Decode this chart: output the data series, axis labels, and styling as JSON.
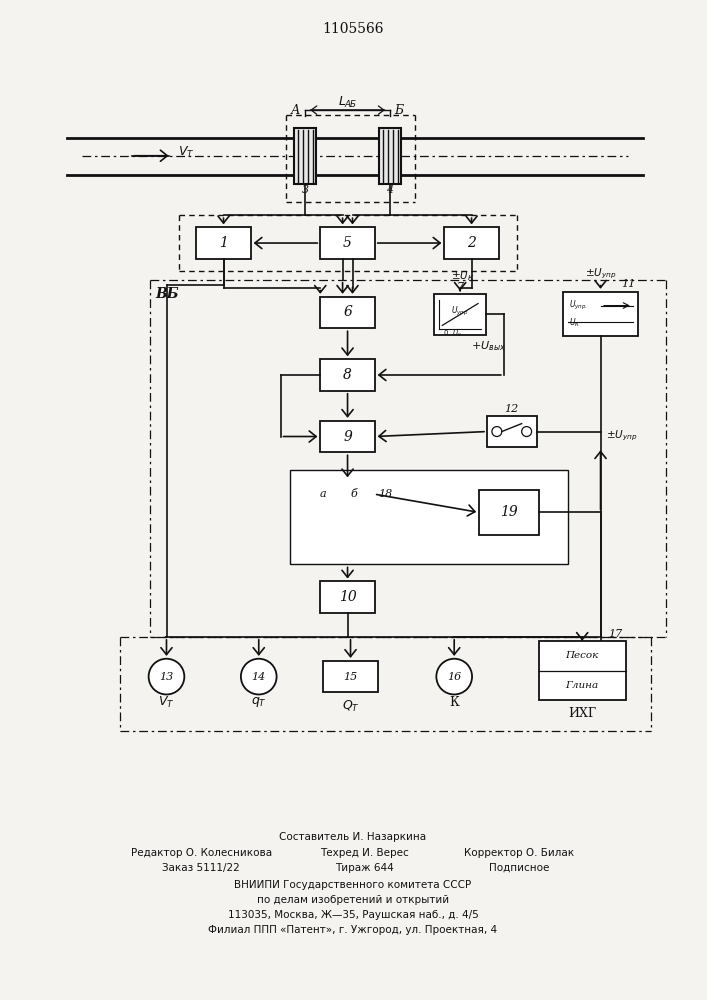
{
  "title": "1105566",
  "bg_color": "#f5f3f0",
  "line_color": "#111111",
  "text_color": "#111111",
  "footer_lines": [
    [
      "Составитель И. Назаркина",
      353,
      840
    ],
    [
      "Редактор О. Колесникова",
      200,
      856
    ],
    [
      "Техред И. Верес",
      365,
      856
    ],
    [
      "Корректор О. Билак",
      520,
      856
    ],
    [
      "Заказ 5111/22",
      200,
      871
    ],
    [
      "Тираж 644",
      365,
      871
    ],
    [
      "Подписное",
      520,
      871
    ],
    [
      "ВНИИПИ Государственного комитета СССР",
      353,
      888
    ],
    [
      "по делам изобретений и открытий",
      353,
      903
    ],
    [
      "113035, Москва, Ж—35, Раушская наб., д. 4/5",
      353,
      918
    ],
    [
      "Филиал ППП «Патент», г. Ужгород, ул. Проектная, 4",
      353,
      933
    ]
  ]
}
